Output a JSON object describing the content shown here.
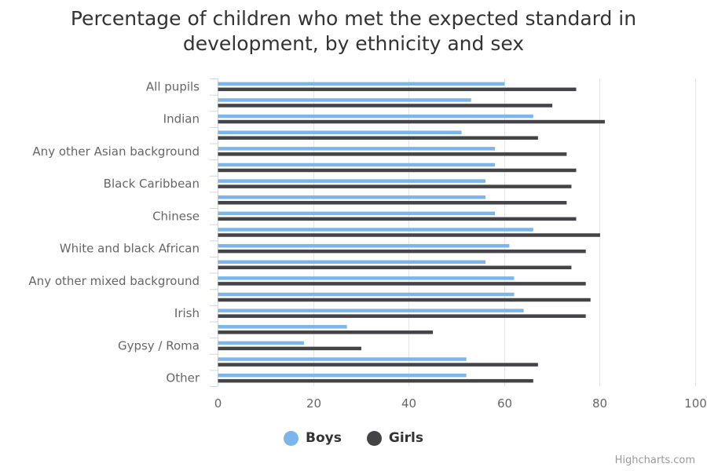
{
  "title_line1": "Percentage of children who met the expected standard in",
  "title_line2": "development, by ethnicity and sex",
  "credits": "Highcharts.com",
  "colors": {
    "boys": "#7cb5ec",
    "girls": "#434348",
    "grid": "#e6e6e6",
    "axis": "#ccd6eb"
  },
  "legend": [
    {
      "name": "Boys",
      "color": "#7cb5ec"
    },
    {
      "name": "Girls",
      "color": "#434348"
    }
  ],
  "chart_data": {
    "type": "bar",
    "orientation": "horizontal",
    "title": "Percentage of children who met the expected standard in development, by ethnicity and sex",
    "xlabel": "",
    "ylabel": "",
    "xlim": [
      0,
      100
    ],
    "x_ticks": [
      0,
      20,
      40,
      60,
      80,
      100
    ],
    "grid": true,
    "legend_position": "bottom-center",
    "category_labels_shown": [
      "All pupils",
      "",
      "Indian",
      "",
      "Any other Asian background",
      "",
      "Black Caribbean",
      "",
      "Chinese",
      "",
      "White and black African",
      "",
      "Any other mixed background",
      "",
      "Irish",
      "",
      "Gypsy / Roma",
      "",
      "Other"
    ],
    "series": [
      {
        "name": "Boys",
        "color": "#7cb5ec",
        "values": [
          60,
          53,
          66,
          51,
          58,
          58,
          56,
          56,
          58,
          66,
          61,
          56,
          62,
          62,
          64,
          27,
          18,
          52,
          52
        ]
      },
      {
        "name": "Girls",
        "color": "#434348",
        "values": [
          75,
          70,
          81,
          67,
          73,
          75,
          74,
          73,
          75,
          80,
          77,
          74,
          77,
          78,
          77,
          45,
          30,
          67,
          66
        ]
      }
    ]
  }
}
